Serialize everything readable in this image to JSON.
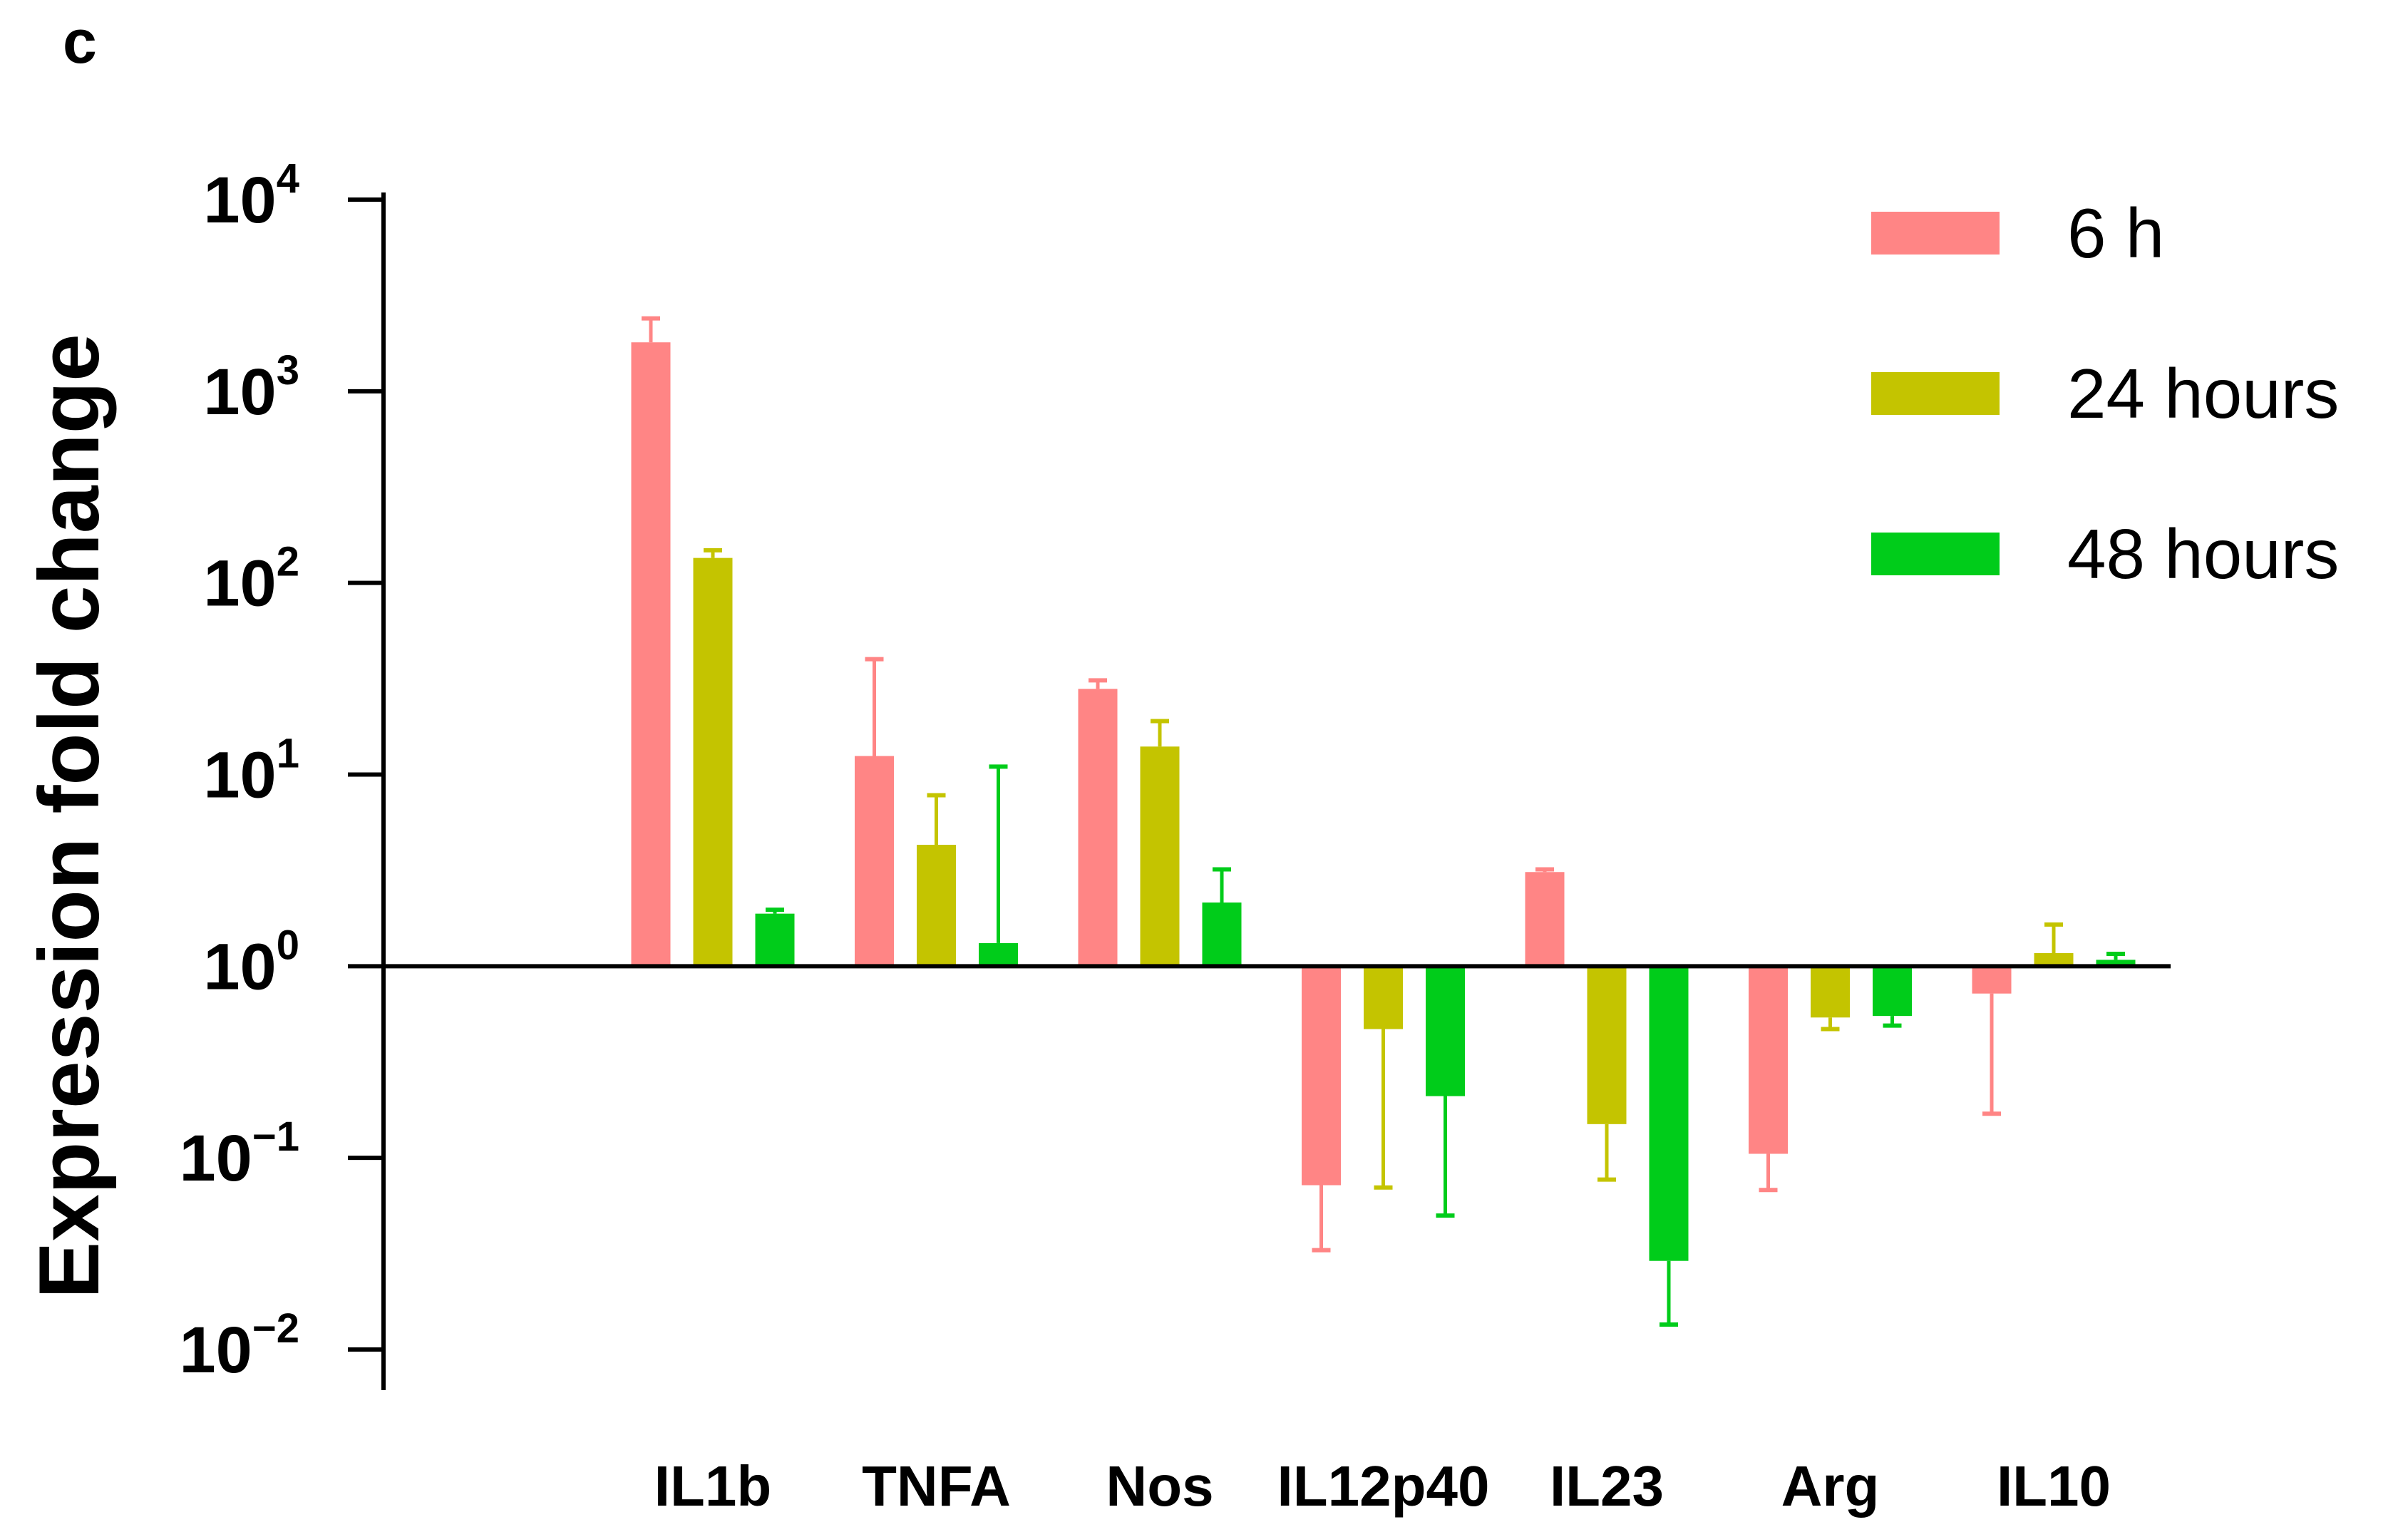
{
  "panel_letter": "c",
  "chart_data": {
    "type": "bar",
    "scale": "log",
    "baseline": 1,
    "ylabel": "Expression fold change",
    "xlabel": "",
    "ylim": [
      0.01,
      10000
    ],
    "yticks": [
      {
        "value": 10000,
        "base": "10",
        "exp": "4"
      },
      {
        "value": 1000,
        "base": "10",
        "exp": "3"
      },
      {
        "value": 100,
        "base": "10",
        "exp": "2"
      },
      {
        "value": 10,
        "base": "10",
        "exp": "1"
      },
      {
        "value": 1,
        "base": "10",
        "exp": "0"
      },
      {
        "value": 0.1,
        "base": "10",
        "exp": "−1"
      },
      {
        "value": 0.01,
        "base": "10",
        "exp": "−2"
      }
    ],
    "categories": [
      "IL1b",
      "TNFA",
      "Nos",
      "IL12p40",
      "IL23",
      "Arg",
      "IL10"
    ],
    "legend_position": "top-right",
    "series": [
      {
        "name": "6 h",
        "color": "#FF8585",
        "values": [
          1800,
          12.5,
          28,
          0.072,
          3.1,
          0.105,
          0.72
        ],
        "error_ends": [
          2400,
          40,
          31,
          0.033,
          3.2,
          0.068,
          0.17
        ]
      },
      {
        "name": "24 hours",
        "color": "#C4C400",
        "values": [
          135,
          4.3,
          14,
          0.47,
          0.15,
          0.54,
          1.17
        ],
        "error_ends": [
          148,
          7.8,
          19,
          0.07,
          0.077,
          0.47,
          1.65
        ]
      },
      {
        "name": "48 hours",
        "color": "#00CC1A",
        "values": [
          1.88,
          1.32,
          2.15,
          0.21,
          0.029,
          0.55,
          1.08
        ],
        "error_ends": [
          1.97,
          11,
          3.2,
          0.05,
          0.0135,
          0.49,
          1.16
        ]
      }
    ]
  }
}
